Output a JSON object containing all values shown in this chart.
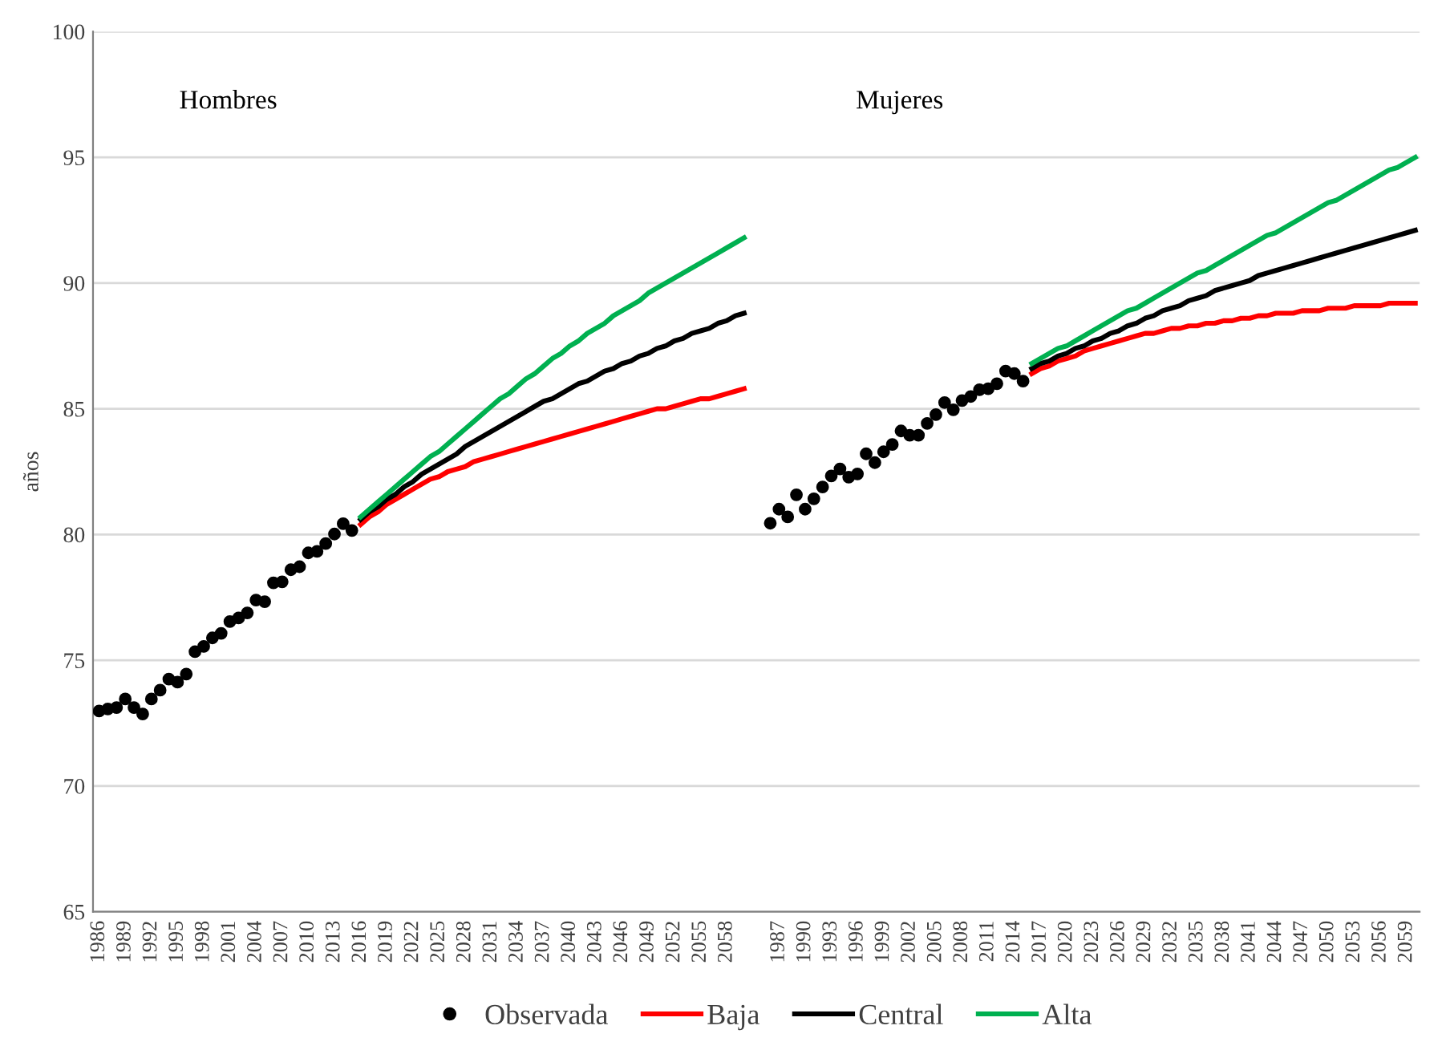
{
  "chart_data": {
    "type": "line",
    "ylabel": "años",
    "annotations": [
      "Hombres",
      "Mujeres"
    ],
    "categories": [
      "1986",
      null,
      null,
      "1989",
      null,
      null,
      "1992",
      null,
      null,
      "1995",
      null,
      null,
      "1998",
      null,
      null,
      "2001",
      null,
      null,
      "2004",
      null,
      null,
      "2007",
      null,
      null,
      "2010",
      null,
      null,
      "2013",
      null,
      null,
      "2016",
      null,
      null,
      "2019",
      null,
      null,
      "2022",
      null,
      null,
      "2025",
      null,
      null,
      "2028",
      null,
      null,
      "2031",
      null,
      null,
      "2034",
      null,
      null,
      "2037",
      null,
      null,
      "2040",
      null,
      null,
      "2043",
      null,
      null,
      "2046",
      null,
      null,
      "2049",
      null,
      null,
      "2052",
      null,
      null,
      "2055",
      null,
      null,
      "2058",
      null,
      null,
      null,
      null,
      null,
      "1987",
      null,
      null,
      "1990",
      null,
      null,
      "1993",
      null,
      null,
      "1996",
      null,
      null,
      "1999",
      null,
      null,
      "2002",
      null,
      null,
      "2005",
      null,
      null,
      "2008",
      null,
      null,
      "2011",
      null,
      null,
      "2014",
      null,
      null,
      "2017",
      null,
      null,
      "2020",
      null,
      null,
      "2023",
      null,
      null,
      "2026",
      null,
      null,
      "2029",
      null,
      null,
      "2032",
      null,
      null,
      "2035",
      null,
      null,
      "2038",
      null,
      null,
      "2041",
      null,
      null,
      "2044",
      null,
      null,
      "2047",
      null,
      null,
      "2050",
      null,
      null,
      "2053",
      null,
      null,
      "2056",
      null,
      null,
      "2059",
      null
    ],
    "series": [
      {
        "name": "Observada",
        "type": "scatter",
        "marker": "circle",
        "color": "#000000",
        "values": [
          72.98,
          73.06,
          73.12,
          73.46,
          73.12,
          72.86,
          73.46,
          73.81,
          74.25,
          74.13,
          74.45,
          75.34,
          75.55,
          75.89,
          76.07,
          76.54,
          76.68,
          76.88,
          77.39,
          77.33,
          78.08,
          78.12,
          78.6,
          78.72,
          79.27,
          79.33,
          79.64,
          80.02,
          80.43,
          80.16,
          null,
          null,
          null,
          null,
          null,
          null,
          null,
          null,
          null,
          null,
          null,
          null,
          null,
          null,
          null,
          null,
          null,
          null,
          null,
          null,
          null,
          null,
          null,
          null,
          null,
          null,
          null,
          null,
          null,
          null,
          null,
          null,
          null,
          null,
          null,
          null,
          null,
          null,
          null,
          null,
          null,
          null,
          null,
          null,
          null,
          null,
          null,
          80.45,
          81.01,
          80.7,
          81.58,
          81.01,
          81.42,
          81.89,
          82.33,
          82.61,
          82.28,
          82.41,
          83.21,
          82.86,
          83.29,
          83.58,
          84.12,
          83.95,
          83.95,
          84.42,
          84.77,
          85.25,
          84.96,
          85.33,
          85.49,
          85.76,
          85.8,
          86.0,
          86.5,
          86.4,
          86.1,
          null,
          null,
          null,
          null,
          null,
          null,
          null,
          null,
          null,
          null,
          null,
          null,
          null,
          null,
          null,
          null,
          null,
          null,
          null,
          null,
          null,
          null,
          null,
          null,
          null,
          null,
          null,
          null,
          null,
          null,
          null,
          null,
          null,
          null,
          null,
          null,
          null,
          null,
          null,
          null,
          null,
          null,
          null,
          null,
          null
        ]
      },
      {
        "name": "Baja",
        "color": "#ff0000",
        "values": [
          null,
          null,
          null,
          null,
          null,
          null,
          null,
          null,
          null,
          null,
          null,
          null,
          null,
          null,
          null,
          null,
          null,
          null,
          null,
          null,
          null,
          null,
          null,
          null,
          null,
          null,
          null,
          null,
          null,
          null,
          80.4,
          80.7,
          80.9,
          81.2,
          81.4,
          81.6,
          81.8,
          82.0,
          82.2,
          82.3,
          82.5,
          82.6,
          82.7,
          82.9,
          83.0,
          83.1,
          83.2,
          83.3,
          83.4,
          83.5,
          83.6,
          83.7,
          83.8,
          83.9,
          84.0,
          84.1,
          84.2,
          84.3,
          84.4,
          84.5,
          84.6,
          84.7,
          84.8,
          84.9,
          85.0,
          85.0,
          85.1,
          85.2,
          85.3,
          85.4,
          85.4,
          85.5,
          85.6,
          85.7,
          85.8,
          null,
          null,
          null,
          null,
          null,
          null,
          null,
          null,
          null,
          null,
          null,
          null,
          null,
          null,
          null,
          null,
          null,
          null,
          null,
          null,
          null,
          null,
          null,
          null,
          null,
          null,
          null,
          null,
          null,
          null,
          null,
          null,
          86.4,
          86.6,
          86.7,
          86.9,
          87.0,
          87.1,
          87.3,
          87.4,
          87.5,
          87.6,
          87.7,
          87.8,
          87.9,
          88.0,
          88.0,
          88.1,
          88.2,
          88.2,
          88.3,
          88.3,
          88.4,
          88.4,
          88.5,
          88.5,
          88.6,
          88.6,
          88.7,
          88.7,
          88.8,
          88.8,
          88.8,
          88.9,
          88.9,
          88.9,
          89.0,
          89.0,
          89.0,
          89.1,
          89.1,
          89.1,
          89.1,
          89.2,
          89.2,
          89.2,
          89.2
        ]
      },
      {
        "name": "Central",
        "color": "#000000",
        "values": [
          null,
          null,
          null,
          null,
          null,
          null,
          null,
          null,
          null,
          null,
          null,
          null,
          null,
          null,
          null,
          null,
          null,
          null,
          null,
          null,
          null,
          null,
          null,
          null,
          null,
          null,
          null,
          null,
          null,
          null,
          80.6,
          80.9,
          81.1,
          81.4,
          81.6,
          81.9,
          82.1,
          82.4,
          82.6,
          82.8,
          83.0,
          83.2,
          83.5,
          83.7,
          83.9,
          84.1,
          84.3,
          84.5,
          84.7,
          84.9,
          85.1,
          85.3,
          85.4,
          85.6,
          85.8,
          86.0,
          86.1,
          86.3,
          86.5,
          86.6,
          86.8,
          86.9,
          87.1,
          87.2,
          87.4,
          87.5,
          87.7,
          87.8,
          88.0,
          88.1,
          88.2,
          88.4,
          88.5,
          88.7,
          88.8,
          null,
          null,
          null,
          null,
          null,
          null,
          null,
          null,
          null,
          null,
          null,
          null,
          null,
          null,
          null,
          null,
          null,
          null,
          null,
          null,
          null,
          null,
          null,
          null,
          null,
          null,
          null,
          null,
          null,
          null,
          null,
          null,
          86.6,
          86.8,
          86.9,
          87.1,
          87.2,
          87.4,
          87.5,
          87.7,
          87.8,
          88.0,
          88.1,
          88.3,
          88.4,
          88.6,
          88.7,
          88.9,
          89.0,
          89.1,
          89.3,
          89.4,
          89.5,
          89.7,
          89.8,
          89.9,
          90.0,
          90.1,
          90.3,
          90.4,
          90.5,
          90.6,
          90.7,
          90.8,
          90.9,
          91.0,
          91.1,
          91.2,
          91.3,
          91.4,
          91.5,
          91.6,
          91.7,
          91.8,
          91.9,
          92.0,
          92.1
        ]
      },
      {
        "name": "Alta",
        "color": "#00b050",
        "values": [
          null,
          null,
          null,
          null,
          null,
          null,
          null,
          null,
          null,
          null,
          null,
          null,
          null,
          null,
          null,
          null,
          null,
          null,
          null,
          null,
          null,
          null,
          null,
          null,
          null,
          null,
          null,
          null,
          null,
          null,
          80.7,
          81.0,
          81.3,
          81.6,
          81.9,
          82.2,
          82.5,
          82.8,
          83.1,
          83.3,
          83.6,
          83.9,
          84.2,
          84.5,
          84.8,
          85.1,
          85.4,
          85.6,
          85.9,
          86.2,
          86.4,
          86.7,
          87.0,
          87.2,
          87.5,
          87.7,
          88.0,
          88.2,
          88.4,
          88.7,
          88.9,
          89.1,
          89.3,
          89.6,
          89.8,
          90.0,
          90.2,
          90.4,
          90.6,
          90.8,
          91.0,
          91.2,
          91.4,
          91.6,
          91.8,
          null,
          null,
          null,
          null,
          null,
          null,
          null,
          null,
          null,
          null,
          null,
          null,
          null,
          null,
          null,
          null,
          null,
          null,
          null,
          null,
          null,
          null,
          null,
          null,
          null,
          null,
          null,
          null,
          null,
          null,
          null,
          null,
          86.8,
          87.0,
          87.2,
          87.4,
          87.5,
          87.7,
          87.9,
          88.1,
          88.3,
          88.5,
          88.7,
          88.9,
          89.0,
          89.2,
          89.4,
          89.6,
          89.8,
          90.0,
          90.2,
          90.4,
          90.5,
          90.7,
          90.9,
          91.1,
          91.3,
          91.5,
          91.7,
          91.9,
          92.0,
          92.2,
          92.4,
          92.6,
          92.8,
          93.0,
          93.2,
          93.3,
          93.5,
          93.7,
          93.9,
          94.1,
          94.3,
          94.5,
          94.6,
          94.8,
          95.0
        ]
      }
    ],
    "ylim": [
      65,
      100
    ],
    "yticks": [
      65,
      70,
      75,
      80,
      85,
      90,
      95,
      100
    ],
    "grid": "y",
    "legend": "bottom",
    "line_style": "solid"
  }
}
